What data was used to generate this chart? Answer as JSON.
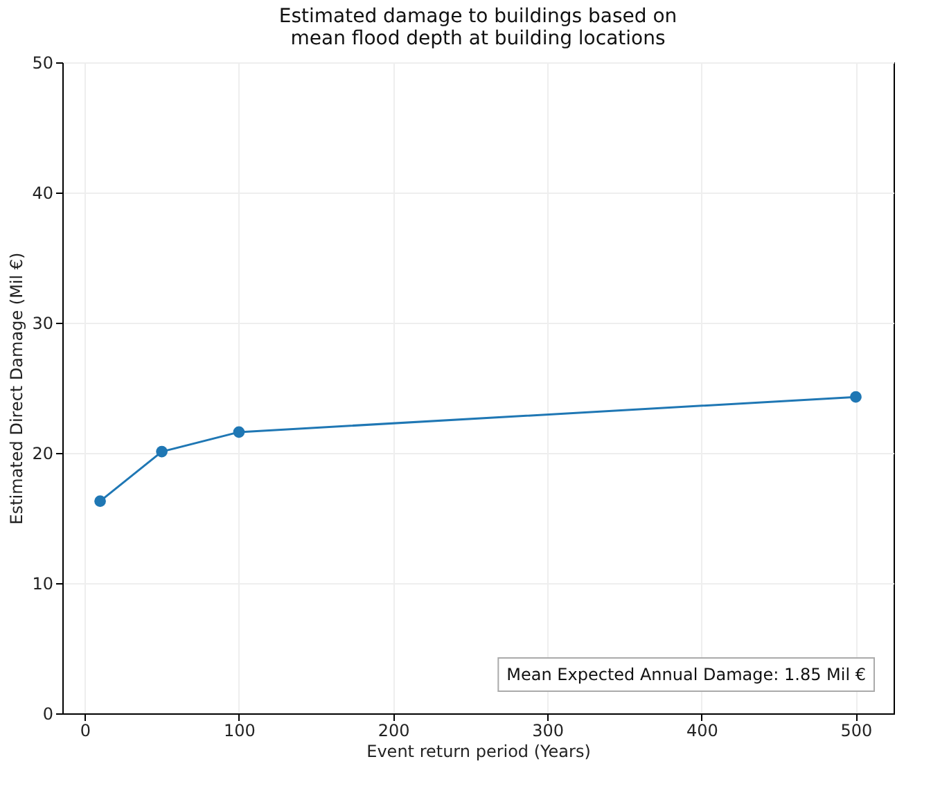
{
  "chart_data": {
    "type": "line",
    "title": "Estimated damage to buildings based on\nmean flood depth at building locations",
    "xlabel": "Event return period (Years)",
    "ylabel": "Estimated Direct Damage (Mil €)",
    "x": [
      10,
      50,
      100,
      500
    ],
    "series": [
      {
        "color": "#1f77b4",
        "values": [
          16.3,
          20.1,
          21.6,
          24.3
        ]
      }
    ],
    "xlim": [
      -14.5,
      524.5
    ],
    "xticks": [
      0,
      100,
      200,
      300,
      400,
      500
    ],
    "ylim": [
      0,
      50
    ],
    "yticks": [
      0,
      10,
      20,
      30,
      40,
      50
    ],
    "grid": true,
    "marker": "circle",
    "line_style": "solid",
    "annotations": [
      "Mean Expected Annual Damage: 1.85 Mil €"
    ]
  }
}
